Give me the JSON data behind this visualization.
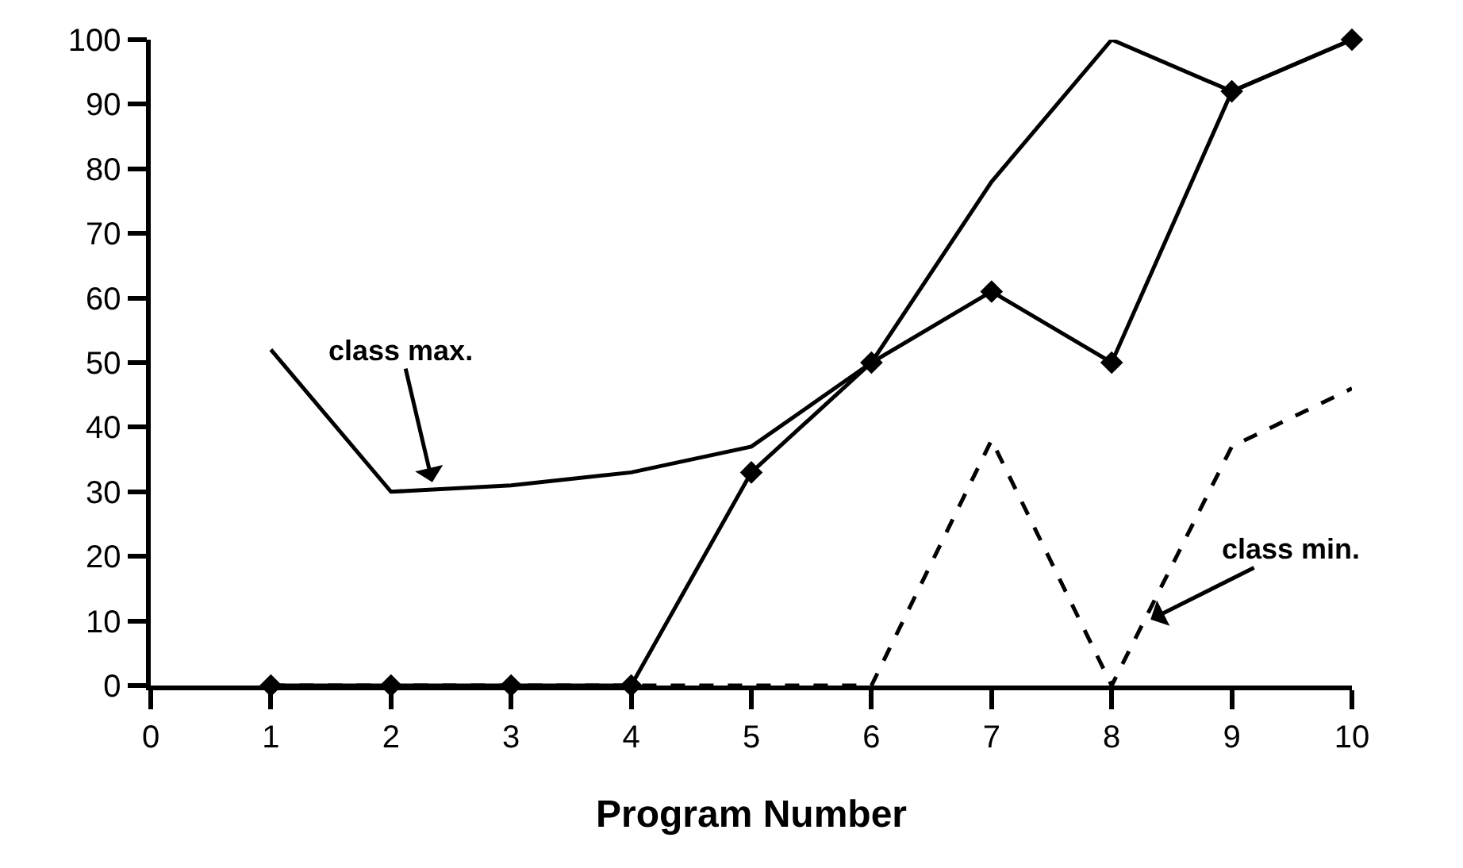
{
  "chart_data": {
    "type": "line",
    "xlabel": "Program Number",
    "x": [
      1,
      2,
      3,
      4,
      5,
      6,
      7,
      8,
      9,
      10
    ],
    "series": [
      {
        "color": "#000000",
        "marker": "diamond",
        "line_style": "solid",
        "values": [
          0,
          0,
          0,
          0,
          33,
          50,
          61,
          50,
          92,
          100
        ]
      },
      {
        "color": "#000000",
        "marker": "none",
        "line_style": "solid",
        "values": [
          52,
          30,
          31,
          33,
          37,
          50,
          78,
          100,
          92,
          100
        ]
      },
      {
        "color": "#000000",
        "marker": "none",
        "line_style": "dashed",
        "values": [
          0,
          0,
          0,
          0,
          0,
          0,
          38,
          0,
          37,
          46
        ]
      }
    ],
    "annotations": [
      {
        "text": "class max.",
        "x": 2.35,
        "y": 31
      },
      {
        "text": "class min.",
        "x": 8.3,
        "y": 10
      }
    ],
    "xlim": [
      0,
      10
    ],
    "xticks": [
      0,
      1,
      2,
      3,
      4,
      5,
      6,
      7,
      8,
      9,
      10
    ],
    "ylim": [
      0,
      100
    ],
    "yticks": [
      0,
      10,
      20,
      30,
      40,
      50,
      60,
      70,
      80,
      90,
      100
    ],
    "grid": false
  }
}
